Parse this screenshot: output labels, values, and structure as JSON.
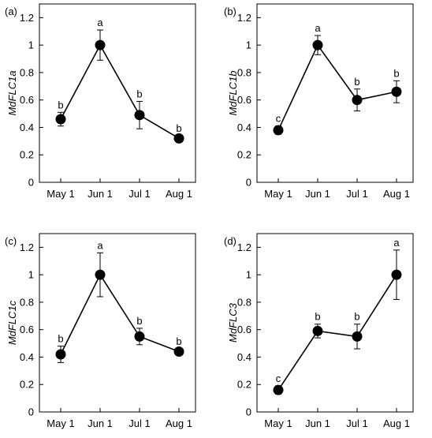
{
  "chart_data": [
    {
      "type": "line",
      "panel_label": "(a)",
      "ylabel": "MdFLC1a",
      "categories": [
        "May 1",
        "Jun 1",
        "Jul 1",
        "Aug 1"
      ],
      "values": [
        0.46,
        1.0,
        0.49,
        0.32
      ],
      "errors": [
        0.05,
        0.11,
        0.1,
        0.02
      ],
      "significance": [
        "b",
        "a",
        "b",
        "b"
      ],
      "ylim": [
        0,
        1.3
      ],
      "yticks": [
        "0",
        "0.2",
        "0.4",
        "0.6",
        "0.8",
        "1",
        "1.2"
      ],
      "grid": false,
      "legend": "none"
    },
    {
      "type": "line",
      "panel_label": "(b)",
      "ylabel": "MdFLC1b",
      "categories": [
        "May 1",
        "Jun 1",
        "Jul 1",
        "Aug 1"
      ],
      "values": [
        0.38,
        1.0,
        0.6,
        0.66
      ],
      "errors": [
        0.03,
        0.07,
        0.08,
        0.08
      ],
      "significance": [
        "c",
        "a",
        "b",
        "b"
      ],
      "ylim": [
        0,
        1.3
      ],
      "yticks": [
        "0",
        "0.2",
        "0.4",
        "0.6",
        "0.8",
        "1",
        "1.2"
      ],
      "grid": false,
      "legend": "none"
    },
    {
      "type": "line",
      "panel_label": "(c)",
      "ylabel": "MdFLC1c",
      "categories": [
        "May 1",
        "Jun 1",
        "Jul 1",
        "Aug 1"
      ],
      "values": [
        0.42,
        1.0,
        0.55,
        0.44
      ],
      "errors": [
        0.06,
        0.16,
        0.06,
        0.02
      ],
      "significance": [
        "b",
        "a",
        "b",
        "b"
      ],
      "ylim": [
        0,
        1.3
      ],
      "yticks": [
        "0",
        "0.2",
        "0.4",
        "0.6",
        "0.8",
        "1",
        "1.2"
      ],
      "grid": false,
      "legend": "none"
    },
    {
      "type": "line",
      "panel_label": "(d)",
      "ylabel": "MdFLC3",
      "categories": [
        "May 1",
        "Jun 1",
        "Jul 1",
        "Aug 1"
      ],
      "values": [
        0.16,
        0.59,
        0.55,
        1.0
      ],
      "errors": [
        0.03,
        0.05,
        0.09,
        0.18
      ],
      "significance": [
        "c",
        "b",
        "b",
        "a"
      ],
      "ylim": [
        0,
        1.3
      ],
      "yticks": [
        "0",
        "0.2",
        "0.4",
        "0.6",
        "0.8",
        "1",
        "1.2"
      ],
      "grid": false,
      "legend": "none"
    }
  ]
}
